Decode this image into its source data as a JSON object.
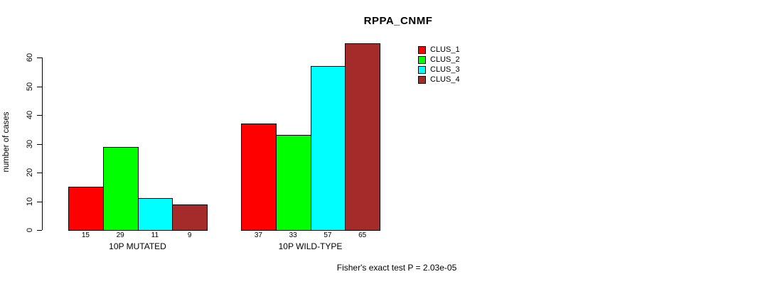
{
  "chart_data": {
    "type": "bar",
    "title": "RPPA_CNMF",
    "xlabel": "",
    "ylabel": "number of cases",
    "ylim": [
      0,
      60
    ],
    "yticks": [
      0,
      10,
      20,
      30,
      40,
      50,
      60
    ],
    "categories": [
      "10P MUTATED",
      "10P WILD-TYPE"
    ],
    "series": [
      {
        "name": "CLUS_1",
        "color": "#ff0000",
        "values": [
          15,
          37
        ]
      },
      {
        "name": "CLUS_2",
        "color": "#00ff00",
        "values": [
          29,
          33
        ]
      },
      {
        "name": "CLUS_3",
        "color": "#00ffff",
        "values": [
          11,
          57
        ]
      },
      {
        "name": "CLUS_4",
        "color": "#a52a2a",
        "values": [
          9,
          65
        ]
      }
    ],
    "bar_value_labels_shown": true,
    "legend_position": "right",
    "grid": false,
    "annotation": "Fisher's exact test P = 2.03e-05"
  },
  "footer": {
    "text": "Fisher's exact test P = 2.03e-05"
  }
}
